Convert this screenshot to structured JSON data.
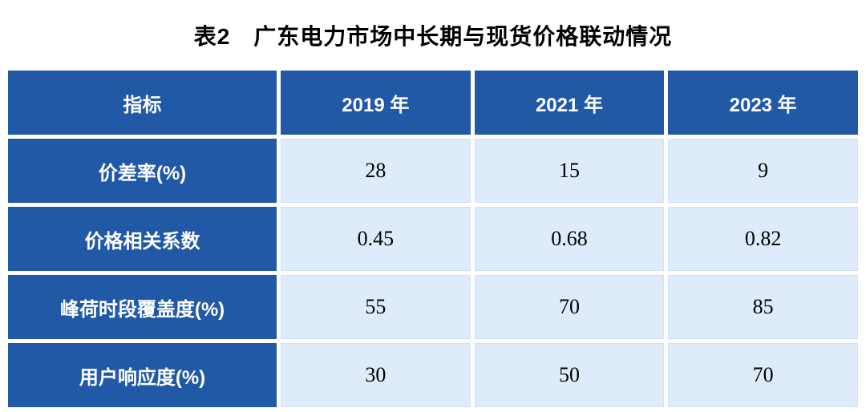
{
  "page": {
    "title": "表2　广东电力市场中长期与现货价格联动情况"
  },
  "colors": {
    "header_bg": "#2159A7",
    "label_bg": "#2159A7",
    "data_bg": "#DDEBFA",
    "header_text": "#FFFFFF",
    "data_text": "#000000",
    "grid_gap": "#FFFFFF"
  },
  "chart_data": {
    "type": "table",
    "title": "表2　广东电力市场中长期与现货价格联动情况",
    "columns": [
      "指标",
      "2019 年",
      "2021 年",
      "2023 年"
    ],
    "rows": [
      {
        "label": "价差率(%)",
        "values": [
          "28",
          "15",
          "9"
        ]
      },
      {
        "label": "价格相关系数",
        "values": [
          "0.45",
          "0.68",
          "0.82"
        ]
      },
      {
        "label": "峰荷时段覆盖度(%)",
        "values": [
          "55",
          "70",
          "85"
        ]
      },
      {
        "label": "用户响应度(%)",
        "values": [
          "30",
          "50",
          "70"
        ]
      }
    ],
    "layout": {
      "header_style": "dark-blue, white bold text",
      "label_column_style": "dark-blue, white bold text",
      "data_cell_style": "light-blue, black serif numerals, centered",
      "grid": "white 5px gaps between cells"
    }
  }
}
